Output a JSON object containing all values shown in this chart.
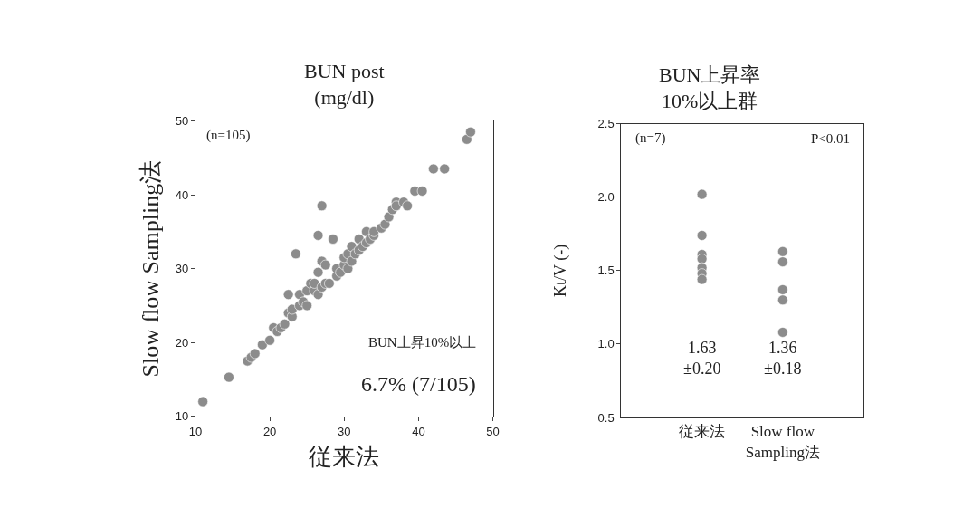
{
  "chart_data": [
    {
      "type": "scatter",
      "title": "BUN post\n(mg/dl)",
      "xlabel": "従来法",
      "ylabel": "Slow flow Sampling法",
      "xlim": [
        10,
        50
      ],
      "ylim": [
        10,
        50
      ],
      "xticks": [
        10,
        20,
        30,
        40,
        50
      ],
      "yticks": [
        10,
        20,
        30,
        40,
        50
      ],
      "marker": "circle",
      "x": [
        11,
        14.5,
        17,
        17.5,
        18,
        19,
        20,
        20.5,
        21,
        21.5,
        22,
        22.5,
        22.5,
        23,
        23,
        23.5,
        24,
        24,
        24.5,
        25,
        25,
        25.5,
        26,
        26,
        26.5,
        26.5,
        26.5,
        27,
        27,
        27,
        27.5,
        27.5,
        28,
        28.5,
        29,
        29,
        29.5,
        30,
        30,
        30.5,
        30.5,
        31,
        31,
        31.5,
        32,
        32,
        32.5,
        33,
        33,
        33.5,
        34,
        34,
        35,
        35.5,
        36,
        36.5,
        37,
        37,
        38,
        38.5,
        39.5,
        40.5,
        42,
        43.5,
        46.5,
        47
      ],
      "series": [
        {
          "color": "#8c8c8c",
          "values": [
            12,
            15.3,
            17.5,
            18,
            18.5,
            19.7,
            20.3,
            22,
            21.5,
            22,
            22.5,
            24,
            26.5,
            23.5,
            24.5,
            32,
            25,
            26.5,
            25.5,
            25,
            27,
            28,
            27,
            28,
            29.5,
            34.5,
            26.5,
            38.5,
            31,
            27.5,
            28,
            30.5,
            28,
            34,
            29,
            30,
            29.5,
            30.5,
            31.5,
            30,
            32,
            31,
            33,
            32,
            32.5,
            34,
            33,
            35,
            33.5,
            34,
            34.5,
            35,
            35.5,
            36,
            37,
            38,
            39,
            38.5,
            39,
            38.5,
            40.5,
            40.5,
            43.5,
            43.5,
            47.5,
            48.5
          ]
        }
      ],
      "annotations": [
        "(n=105)",
        "BUN上昇10%以上",
        "6.7% (7/105)"
      ]
    },
    {
      "type": "scatter",
      "title": "BUN上昇率\n10%以上群",
      "ylabel": "Kt/V (-)",
      "categories": [
        "従来法",
        "Slow flow\nSampling法"
      ],
      "ylim": [
        0.5,
        2.5
      ],
      "yticks": [
        {
          "value": 0.5,
          "label": "0.5"
        },
        {
          "value": 1.0,
          "label": "1.0"
        },
        {
          "value": 1.5,
          "label": "1.5"
        },
        {
          "value": 2.0,
          "label": "2.0"
        },
        {
          "value": 2.5,
          "label": "2.5"
        }
      ],
      "marker": "circle",
      "series": [
        {
          "color": "#8c8c8c",
          "x": [
            "従来法",
            "従来法",
            "従来法",
            "従来法",
            "従来法",
            "従来法",
            "従来法"
          ],
          "values": [
            2.02,
            1.74,
            1.61,
            1.58,
            1.52,
            1.48,
            1.44
          ]
        },
        {
          "color": "#8c8c8c",
          "x": [
            "Slow flow\nSampling法",
            "Slow flow\nSampling法",
            "Slow flow\nSampling法",
            "Slow flow\nSampling法",
            "Slow flow\nSampling法"
          ],
          "values": [
            1.63,
            1.56,
            1.37,
            1.3,
            1.08
          ]
        }
      ],
      "annotations": [
        "(n=7)",
        "P<0.01",
        "1.63\n±0.20",
        "1.36\n±0.18"
      ]
    }
  ]
}
